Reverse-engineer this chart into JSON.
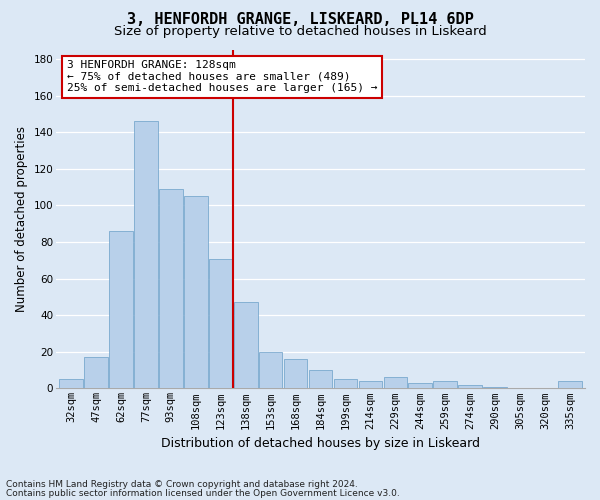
{
  "title1": "3, HENFORDH GRANGE, LISKEARD, PL14 6DP",
  "title2": "Size of property relative to detached houses in Liskeard",
  "xlabel": "Distribution of detached houses by size in Liskeard",
  "ylabel": "Number of detached properties",
  "bin_labels": [
    "32sqm",
    "47sqm",
    "62sqm",
    "77sqm",
    "93sqm",
    "108sqm",
    "123sqm",
    "138sqm",
    "153sqm",
    "168sqm",
    "184sqm",
    "199sqm",
    "214sqm",
    "229sqm",
    "244sqm",
    "259sqm",
    "274sqm",
    "290sqm",
    "305sqm",
    "320sqm",
    "335sqm"
  ],
  "bar_values": [
    5,
    17,
    86,
    146,
    109,
    105,
    71,
    47,
    20,
    16,
    10,
    5,
    4,
    6,
    3,
    4,
    2,
    1,
    0,
    0,
    4
  ],
  "bar_color": "#b8d0ea",
  "bar_edge_color": "#6a9fc8",
  "vline_color": "#cc0000",
  "ylim": [
    0,
    185
  ],
  "yticks": [
    0,
    20,
    40,
    60,
    80,
    100,
    120,
    140,
    160,
    180
  ],
  "annotation_title": "3 HENFORDH GRANGE: 128sqm",
  "annotation_line1": "← 75% of detached houses are smaller (489)",
  "annotation_line2": "25% of semi-detached houses are larger (165) →",
  "footnote1": "Contains HM Land Registry data © Crown copyright and database right 2024.",
  "footnote2": "Contains public sector information licensed under the Open Government Licence v3.0.",
  "bg_color": "#dce8f5",
  "plot_bg_color": "#dce8f5",
  "grid_color": "#ffffff",
  "title1_fontsize": 11,
  "title2_fontsize": 9.5,
  "xlabel_fontsize": 9,
  "ylabel_fontsize": 8.5,
  "tick_fontsize": 7.5,
  "annotation_fontsize": 8,
  "footnote_fontsize": 6.5,
  "vline_bar_index": 6.5
}
